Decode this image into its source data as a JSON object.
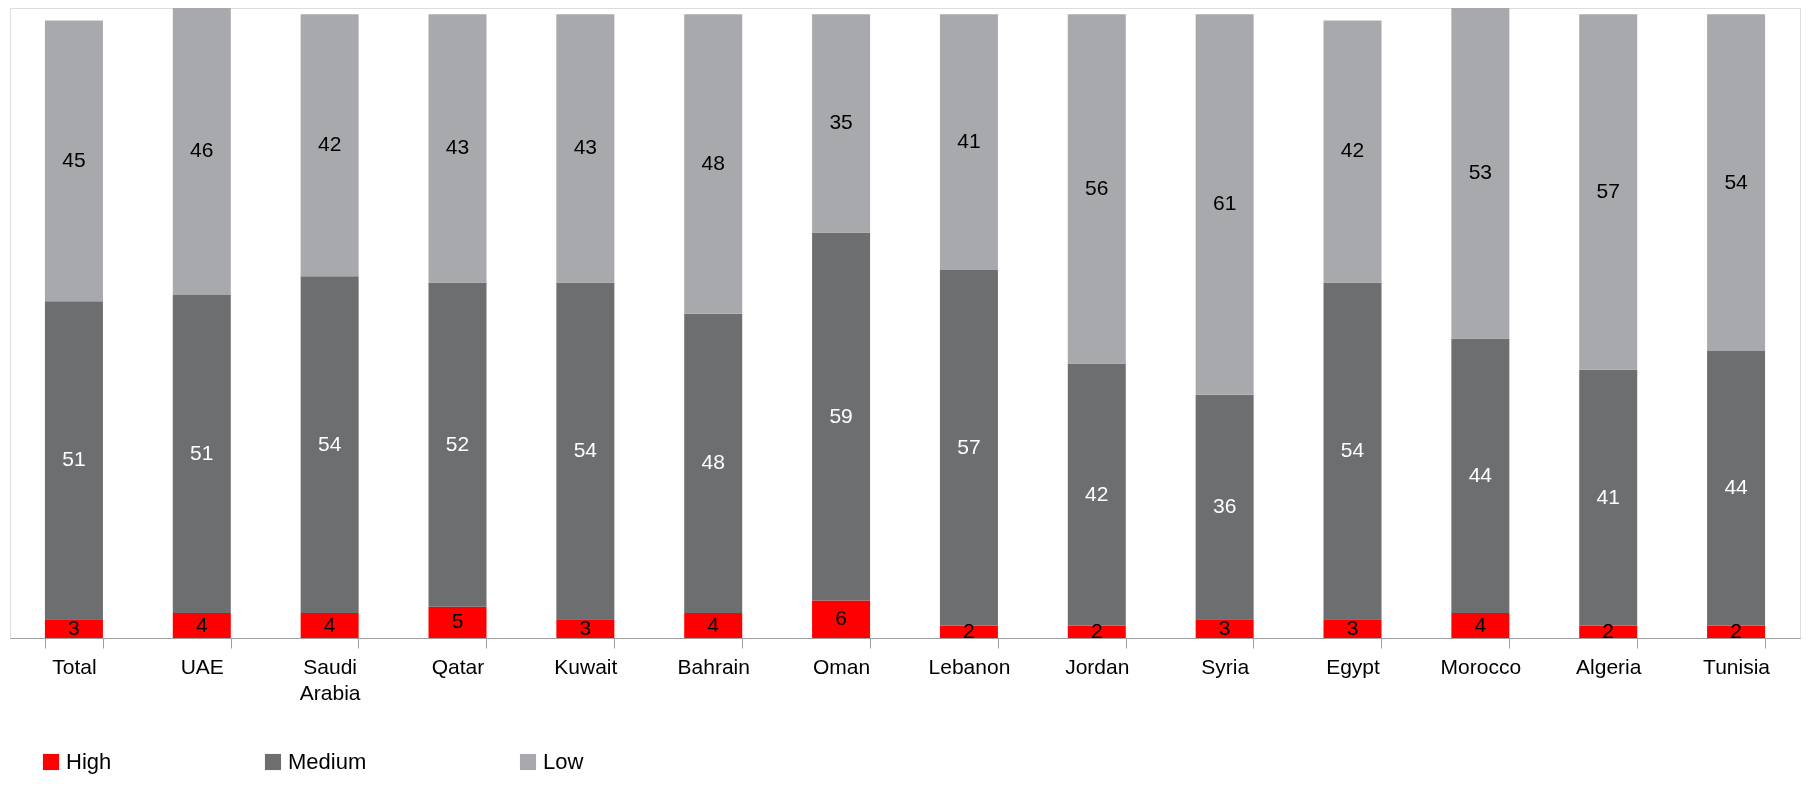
{
  "chart_data": {
    "type": "bar",
    "stacked": true,
    "data_labels": true,
    "legend": "bottom",
    "grid": false,
    "categories": [
      "Total",
      "UAE",
      "Saudi Arabia",
      "Qatar",
      "Kuwait",
      "Bahrain",
      "Oman",
      "Lebanon",
      "Jordan",
      "Syria",
      "Egypt",
      "Morocco",
      "Algeria",
      "Tunisia"
    ],
    "series": [
      {
        "name": "High",
        "color": "#ff0000",
        "values": [
          3,
          4,
          4,
          5,
          3,
          4,
          6,
          2,
          2,
          3,
          3,
          4,
          2,
          2
        ]
      },
      {
        "name": "Medium",
        "color": "#6d6e70",
        "values": [
          51,
          51,
          54,
          52,
          54,
          48,
          59,
          57,
          42,
          36,
          54,
          44,
          41,
          44
        ]
      },
      {
        "name": "Low",
        "color": "#a7a9ac",
        "values": [
          45,
          46,
          42,
          43,
          43,
          48,
          35,
          41,
          56,
          61,
          42,
          53,
          57,
          54
        ]
      }
    ]
  }
}
